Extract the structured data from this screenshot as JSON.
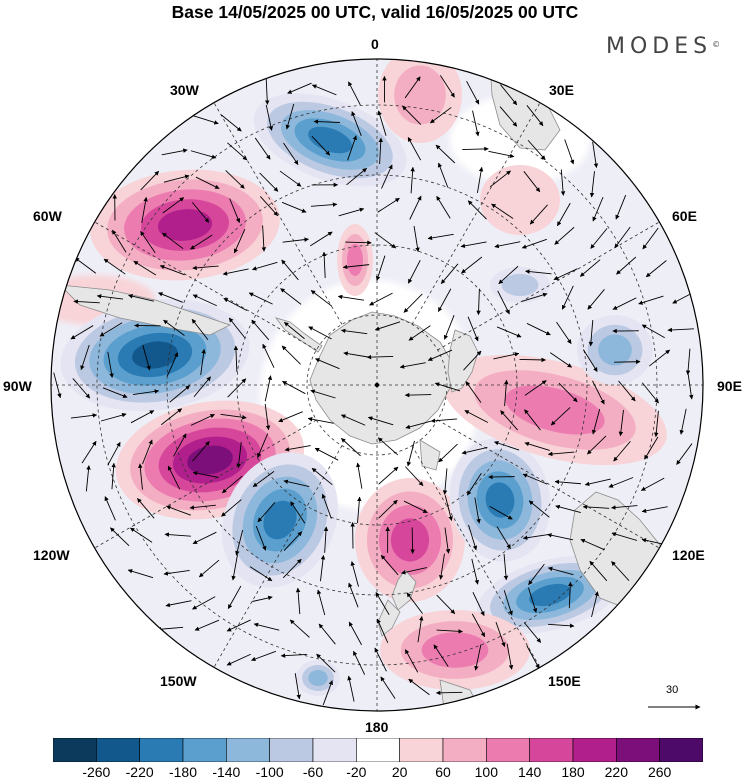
{
  "header": {
    "title": "Base 14/05/2025 00 UTC, valid 16/05/2025 00 UTC",
    "brand": "MODES",
    "brand_mark": "©"
  },
  "map": {
    "projection": "south polar stereographic",
    "longitude_labels": [
      "0",
      "30E",
      "60E",
      "90E",
      "120E",
      "150E",
      "180",
      "150W",
      "120W",
      "90W",
      "60W",
      "30W"
    ],
    "wind_reference_label": "30",
    "colors": {
      "land": "#e6e6e6",
      "coast": "#8c8c8c",
      "grid": "#333333"
    }
  },
  "colorbar": {
    "tick_labels": [
      "-260",
      "-220",
      "-180",
      "-140",
      "-100",
      "-60",
      "-20",
      "20",
      "60",
      "100",
      "140",
      "180",
      "220",
      "260"
    ],
    "colors": [
      "#0b3a5c",
      "#12588c",
      "#2a7ab4",
      "#5a9fcd",
      "#8db8dc",
      "#bcc9e2",
      "#e4e4f2",
      "#ffffff",
      "#f8d4d8",
      "#f4aec4",
      "#ec7cb0",
      "#d6479b",
      "#b01f8c",
      "#7d0f7b",
      "#4e0a68"
    ]
  }
}
